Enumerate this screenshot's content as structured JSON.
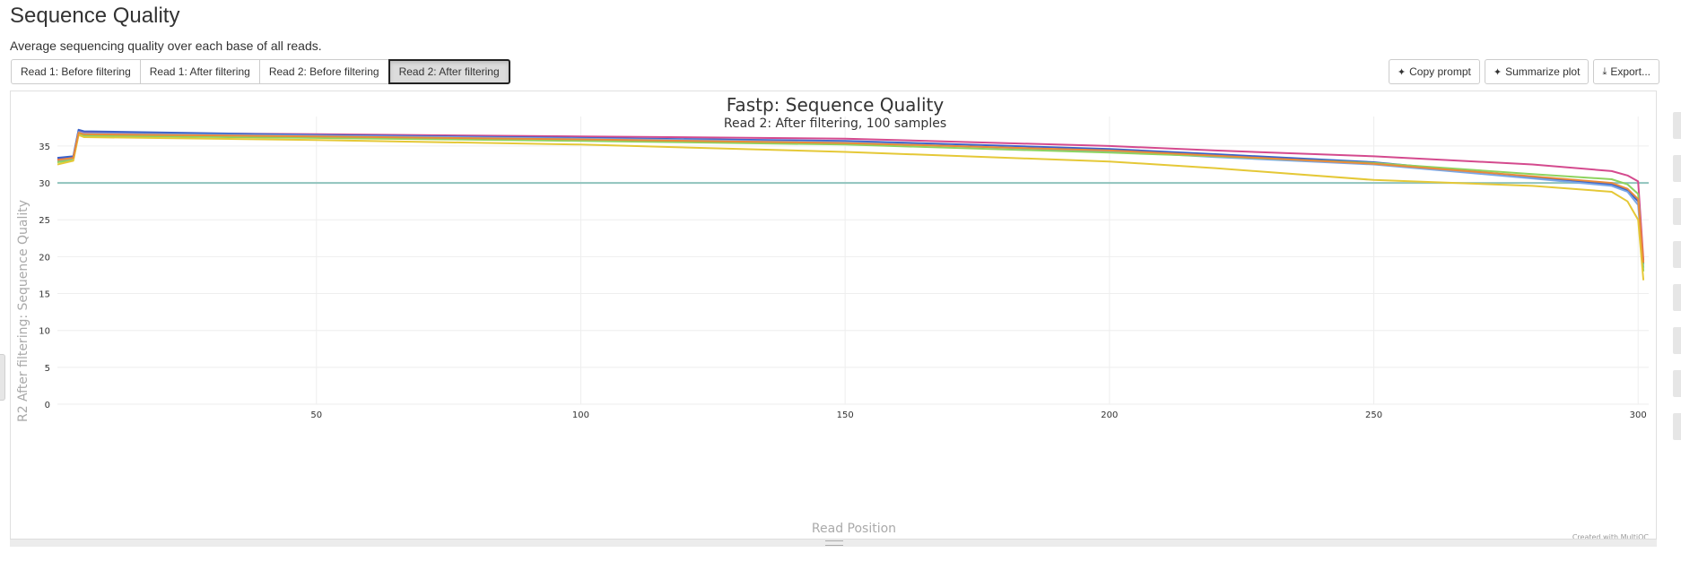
{
  "page": {
    "title": "Sequence Quality",
    "description": "Average sequencing quality over each base of all reads."
  },
  "tabs": [
    {
      "label": "Read 1: Before filtering",
      "active": false
    },
    {
      "label": "Read 1: After filtering",
      "active": false
    },
    {
      "label": "Read 2: Before filtering",
      "active": false
    },
    {
      "label": "Read 2: After filtering",
      "active": true
    }
  ],
  "actions": {
    "copy_prompt": "Copy prompt",
    "summarize": "Summarize plot",
    "export": "Export..."
  },
  "icons": {
    "copy_prompt": "sparkle-icon",
    "summarize": "sparkle-icon",
    "export": "download-icon"
  },
  "colors": {
    "grid": "#eeeeee",
    "threshold": "#8fc3bd",
    "axis_text": "#999999",
    "title_text": "#333333"
  },
  "chart_data": {
    "type": "line",
    "title": "Fastp: Sequence Quality",
    "subtitle": "Read 2: After filtering, 100 samples",
    "xlabel": "Read Position",
    "ylabel": "R2 After filtering: Sequence Quality",
    "xlim": [
      1,
      302
    ],
    "ylim": [
      0,
      39
    ],
    "xticks": [
      50,
      100,
      150,
      200,
      250,
      300
    ],
    "yticks": [
      0,
      5,
      10,
      15,
      20,
      25,
      30,
      35
    ],
    "grid": true,
    "legend": "none",
    "threshold_line": {
      "y": 30
    },
    "credit": "Created with MultiQC",
    "series": [
      {
        "color": "#d44a8e",
        "x": [
          1,
          4,
          5,
          6,
          50,
          100,
          150,
          200,
          220,
          250,
          280,
          295,
          298,
          300,
          301
        ],
        "y": [
          33.2,
          33.4,
          37.0,
          36.8,
          36.6,
          36.3,
          36.0,
          35.0,
          34.4,
          33.6,
          32.5,
          31.6,
          31.0,
          30.2,
          19.5
        ]
      },
      {
        "color": "#3a62c9",
        "x": [
          1,
          4,
          5,
          6,
          50,
          100,
          150,
          200,
          220,
          250,
          280,
          295,
          298,
          300,
          301
        ],
        "y": [
          33.4,
          33.6,
          37.2,
          37.0,
          36.5,
          36.1,
          35.7,
          34.6,
          33.9,
          32.8,
          30.8,
          29.8,
          29.0,
          27.5,
          19.0
        ]
      },
      {
        "color": "#7aa7e6",
        "x": [
          1,
          4,
          5,
          6,
          50,
          100,
          150,
          200,
          220,
          250,
          280,
          295,
          298,
          300,
          301
        ],
        "y": [
          33.0,
          33.3,
          36.9,
          36.7,
          36.4,
          36.0,
          35.5,
          34.3,
          33.5,
          32.5,
          30.6,
          29.6,
          28.8,
          27.0,
          18.5
        ]
      },
      {
        "color": "#8dd35f",
        "x": [
          1,
          4,
          5,
          6,
          50,
          100,
          150,
          200,
          220,
          250,
          280,
          295,
          298,
          300,
          301
        ],
        "y": [
          32.8,
          33.1,
          36.6,
          36.4,
          36.1,
          35.7,
          35.2,
          34.1,
          33.6,
          32.7,
          31.2,
          30.5,
          29.8,
          28.5,
          18.0
        ]
      },
      {
        "color": "#e5c837",
        "x": [
          1,
          4,
          5,
          6,
          50,
          100,
          150,
          200,
          220,
          250,
          280,
          295,
          298,
          300,
          301
        ],
        "y": [
          32.5,
          33.0,
          36.5,
          36.2,
          35.8,
          35.2,
          34.2,
          32.9,
          32.0,
          30.4,
          29.6,
          28.8,
          27.5,
          25.0,
          16.8
        ]
      },
      {
        "color": "#ea8a3a",
        "x": [
          1,
          4,
          5,
          6,
          50,
          100,
          150,
          200,
          220,
          250,
          280,
          295,
          298,
          300,
          301
        ],
        "y": [
          33.1,
          33.4,
          36.8,
          36.6,
          36.3,
          35.9,
          35.4,
          34.4,
          33.7,
          32.6,
          30.9,
          30.0,
          29.2,
          27.8,
          19.2
        ]
      }
    ]
  }
}
